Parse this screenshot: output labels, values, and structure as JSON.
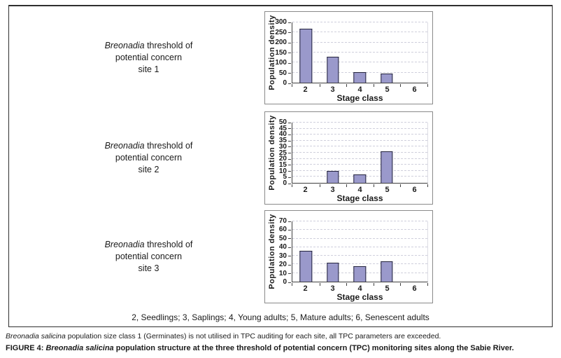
{
  "figure": {
    "rows": [
      {
        "italic": "Breonadia",
        "after_italic": " threshold of",
        "line2": "potential concern",
        "line3": "site 1"
      },
      {
        "italic": "Breonadia",
        "after_italic": " threshold of",
        "line2": "potential concern",
        "line3": "site 2"
      },
      {
        "italic": "Breonadia",
        "after_italic": " threshold of",
        "line2": "potential concern",
        "line3": "site 3"
      }
    ],
    "legend": "2, Seedlings; 3, Saplings; 4, Young adults; 5, Mature adults; 6, Senescent adults"
  },
  "chart_data": [
    {
      "type": "bar",
      "title": "Breonadia threshold of potential concern site 1",
      "categories": [
        "2",
        "3",
        "4",
        "5",
        "6"
      ],
      "values": [
        270,
        128,
        53,
        44,
        0
      ],
      "xlabel": "Stage class",
      "ylabel": "Population density",
      "ylim": [
        0,
        300
      ],
      "ytick_step": 50,
      "grid": "dashed horizontal",
      "legend_position": "none"
    },
    {
      "type": "bar",
      "title": "Breonadia threshold of potential concern site 2",
      "categories": [
        "2",
        "3",
        "4",
        "5",
        "6"
      ],
      "values": [
        0,
        10,
        7,
        26,
        0
      ],
      "xlabel": "Stage class",
      "ylabel": "Population density",
      "ylim": [
        0,
        50
      ],
      "ytick_step": 5,
      "grid": "dashed horizontal",
      "legend_position": "none"
    },
    {
      "type": "bar",
      "title": "Breonadia threshold of potential concern site 3",
      "categories": [
        "2",
        "3",
        "4",
        "5",
        "6"
      ],
      "values": [
        36,
        22,
        18,
        24,
        0
      ],
      "xlabel": "Stage class",
      "ylabel": "Population density",
      "ylim": [
        0,
        70
      ],
      "ytick_step": 10,
      "grid": "dashed horizontal",
      "legend_position": "none"
    }
  ],
  "captions": {
    "footnote_italic": "Breonadia salicina",
    "footnote_rest": " population size class 1 (Germinates) is not utilised in TPC auditing for each site, all TPC parameters are exceeded.",
    "figure_label": "FIGURE 4: ",
    "figure_italic": "Breonadia salicina",
    "figure_rest": " population structure at the three threshold of potential concern (TPC) monitoring sites along the Sabie River."
  },
  "colors": {
    "bar_fill": "#9a99cb",
    "bar_border": "#23233c",
    "grid": "#cfcfdc",
    "axis": "#3f3f3f",
    "panel_border": "#8a8a8a",
    "box_border": "#2f2f2f"
  }
}
